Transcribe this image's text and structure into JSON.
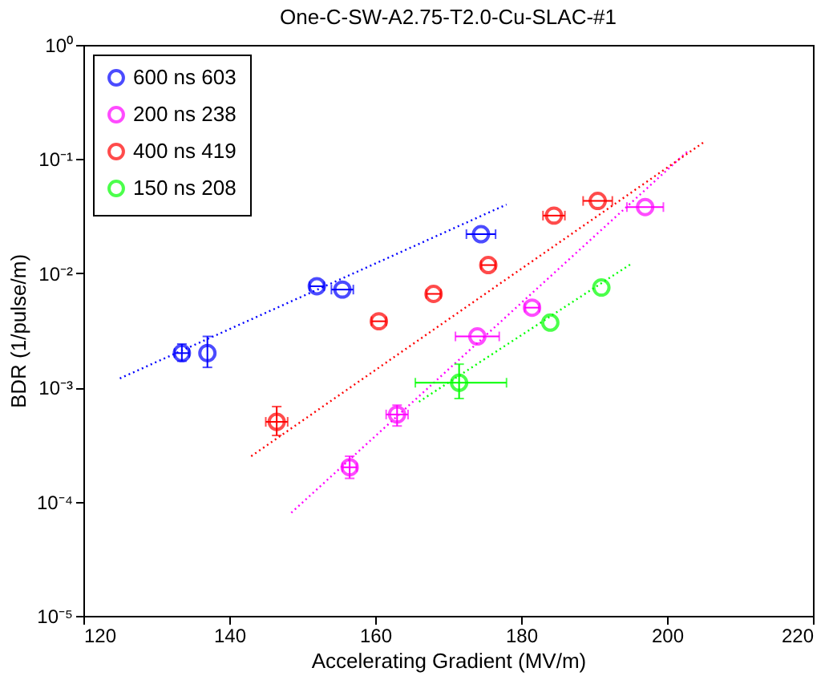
{
  "chart_data": {
    "type": "scatter",
    "title": "One-C-SW-A2.75-T2.0-Cu-SLAC-#1",
    "xlabel": "Accelerating Gradient (MV/m)",
    "ylabel": "BDR (1/pulse/m)",
    "log": "y",
    "grid": false,
    "legend": "top left",
    "marker": "circle",
    "xlim": [
      120,
      220
    ],
    "xticks": [
      120,
      140,
      160,
      180,
      200,
      220
    ],
    "ylim": [
      1e-05,
      1
    ],
    "yticks": [
      {
        "value": 1e-05,
        "label": "10⁻⁵"
      },
      {
        "value": 0.0001,
        "label": "10⁻⁴"
      },
      {
        "value": 0.001,
        "label": "10⁻³"
      },
      {
        "value": 0.01,
        "label": "10⁻²"
      },
      {
        "value": 0.1,
        "label": "10⁻¹"
      },
      {
        "value": 1,
        "label": "10⁰"
      }
    ],
    "series": [
      {
        "name": "600 ns 603",
        "color": "#0000ff",
        "x": [
          133.5,
          137,
          152,
          155.5,
          174.5
        ],
        "values": [
          0.002,
          0.002,
          0.0077,
          0.0072,
          0.022
        ],
        "errors": [
          [
            0.0017,
            0.0024
          ],
          [
            0.0015,
            0.0028
          ],
          null,
          null,
          null
        ],
        "xerrors": [
          1,
          null,
          1,
          1.5,
          2
        ]
      },
      {
        "name": "200 ns 238",
        "color": "#ff00ff",
        "x": [
          156.5,
          163,
          174,
          181.5,
          197
        ],
        "values": [
          0.0002,
          0.00058,
          0.0028,
          0.005,
          0.038
        ],
        "errors": [
          [
            0.00016,
            0.00025
          ],
          [
            0.00046,
            0.0007
          ],
          null,
          null,
          null
        ],
        "xerrors": [
          1,
          1.5,
          3,
          1,
          2.5
        ]
      },
      {
        "name": "400 ns 419",
        "color": "#ff0000",
        "x": [
          146.5,
          160.5,
          168,
          175.5,
          184.5,
          190.5
        ],
        "values": [
          0.0005,
          0.0038,
          0.0066,
          0.0118,
          0.032,
          0.043
        ],
        "errors": [
          [
            0.00038,
            0.00068
          ],
          null,
          null,
          null,
          null,
          null
        ],
        "xerrors": [
          1.5,
          1,
          1,
          1,
          1.5,
          2
        ]
      },
      {
        "name": "150 ns 208",
        "color": "#00ff00",
        "x": [
          171.5,
          184,
          191
        ],
        "values": [
          0.0011,
          0.0037,
          0.0075
        ],
        "errors": [
          [
            0.0008,
            0.0016
          ],
          null,
          null
        ],
        "xerrors": [
          [
            165.5,
            178
          ],
          null,
          null
        ]
      },
      {
        "type": "line",
        "color": "#0000ff",
        "line_style": "dotted",
        "marker": "none",
        "x": [
          125,
          178
        ],
        "values": [
          0.0012,
          0.04
        ]
      },
      {
        "type": "line",
        "color": "#ff00ff",
        "line_style": "dotted",
        "marker": "none",
        "x": [
          148.5,
          203
        ],
        "values": [
          8e-05,
          0.12
        ]
      },
      {
        "type": "line",
        "color": "#ff0000",
        "line_style": "dotted",
        "marker": "none",
        "x": [
          143,
          205
        ],
        "values": [
          0.00025,
          0.14
        ]
      },
      {
        "type": "line",
        "color": "#00ff00",
        "line_style": "dotted",
        "marker": "none",
        "x": [
          166,
          195
        ],
        "values": [
          0.00075,
          0.012
        ]
      }
    ]
  }
}
